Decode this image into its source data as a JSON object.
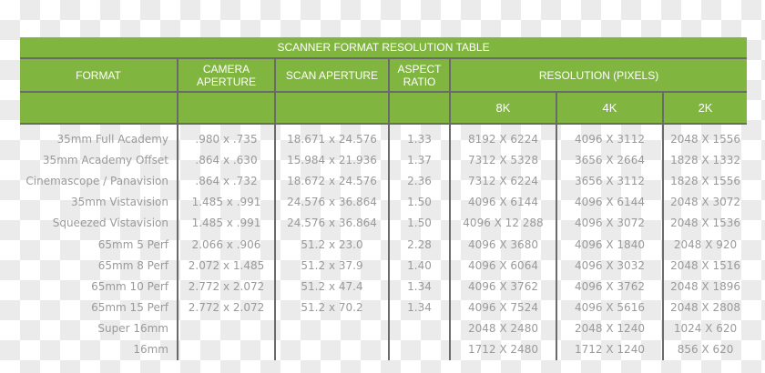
{
  "title": "SCANNER FORMAT RESOLUTION TABLE",
  "headers": {
    "format": "FORMAT",
    "camera_aperture": "CAMERA APERTURE",
    "scan_aperture": "SCAN APERTURE",
    "aspect_ratio": "ASPECT RATIO",
    "resolution": "RESOLUTION (PIXELS)",
    "res_8k": "8K",
    "res_4k": "4K",
    "res_2k": "2K"
  },
  "colors": {
    "header_green": "#80b540",
    "text_gray": "#9a9a9a"
  },
  "rows": [
    [
      "35mm Full Academy",
      ".980 x .735",
      "18.671 x 24.576",
      "1.33",
      "8192 X 6224",
      "4096 X 3112",
      "2048 X 1556"
    ],
    [
      "35mm Academy Offset",
      ".864 x .630",
      "15.984 x 21.936",
      "1.37",
      "7312 X 5328",
      "3656 X 2664",
      "1828 X 1332"
    ],
    [
      "Cinemascope / Panavision",
      ".864 x .732",
      "18.672 x 24.576",
      "2.36",
      "7312 X 6224",
      "3656 X 3112",
      "1828 X 1556"
    ],
    [
      "35mm Vistavision",
      "1.485 x .991",
      "24.576 x 36.864",
      "1.50",
      "4096 X 6144",
      "4096 X 6144",
      "2048 X 3072"
    ],
    [
      "Squeezed Vistavision",
      "1.485 x .991",
      "24.576 x 36.864",
      "1.50",
      "4096 X 12 288",
      "4096 X 3072",
      "2048 X 1536"
    ],
    [
      "65mm 5 Perf",
      "2.066 x .906",
      "51.2 x 23.0",
      "2.28",
      "4096 X 3680",
      "4096 X 1840",
      "2048 X 920"
    ],
    [
      "65mm 8 Perf",
      "2.072 x 1.485",
      "51.2 x 37.9",
      "1.40",
      "4096 X 6064",
      "4096 X 3032",
      "2048 X 1516"
    ],
    [
      "65mm 10 Perf",
      "2.772 x 2.072",
      "51.2 x 47.4",
      "1.34",
      "4096 X 3762",
      "4096 X 3762",
      "2048 X 1896"
    ],
    [
      "65mm 15 Perf",
      "2.772 x 2.072",
      "51.2 x 70.2",
      "1.34",
      "4096 X 7524",
      "4096 X 5616",
      "2048 X 2808"
    ],
    [
      "Super 16mm",
      "",
      "",
      "",
      "2048 X 2480",
      "2048 X 1240",
      "1024 X 620"
    ],
    [
      "16mm",
      "",
      "",
      "",
      "1712 X 2480",
      "1712 X 1240",
      "856 X 620"
    ]
  ]
}
